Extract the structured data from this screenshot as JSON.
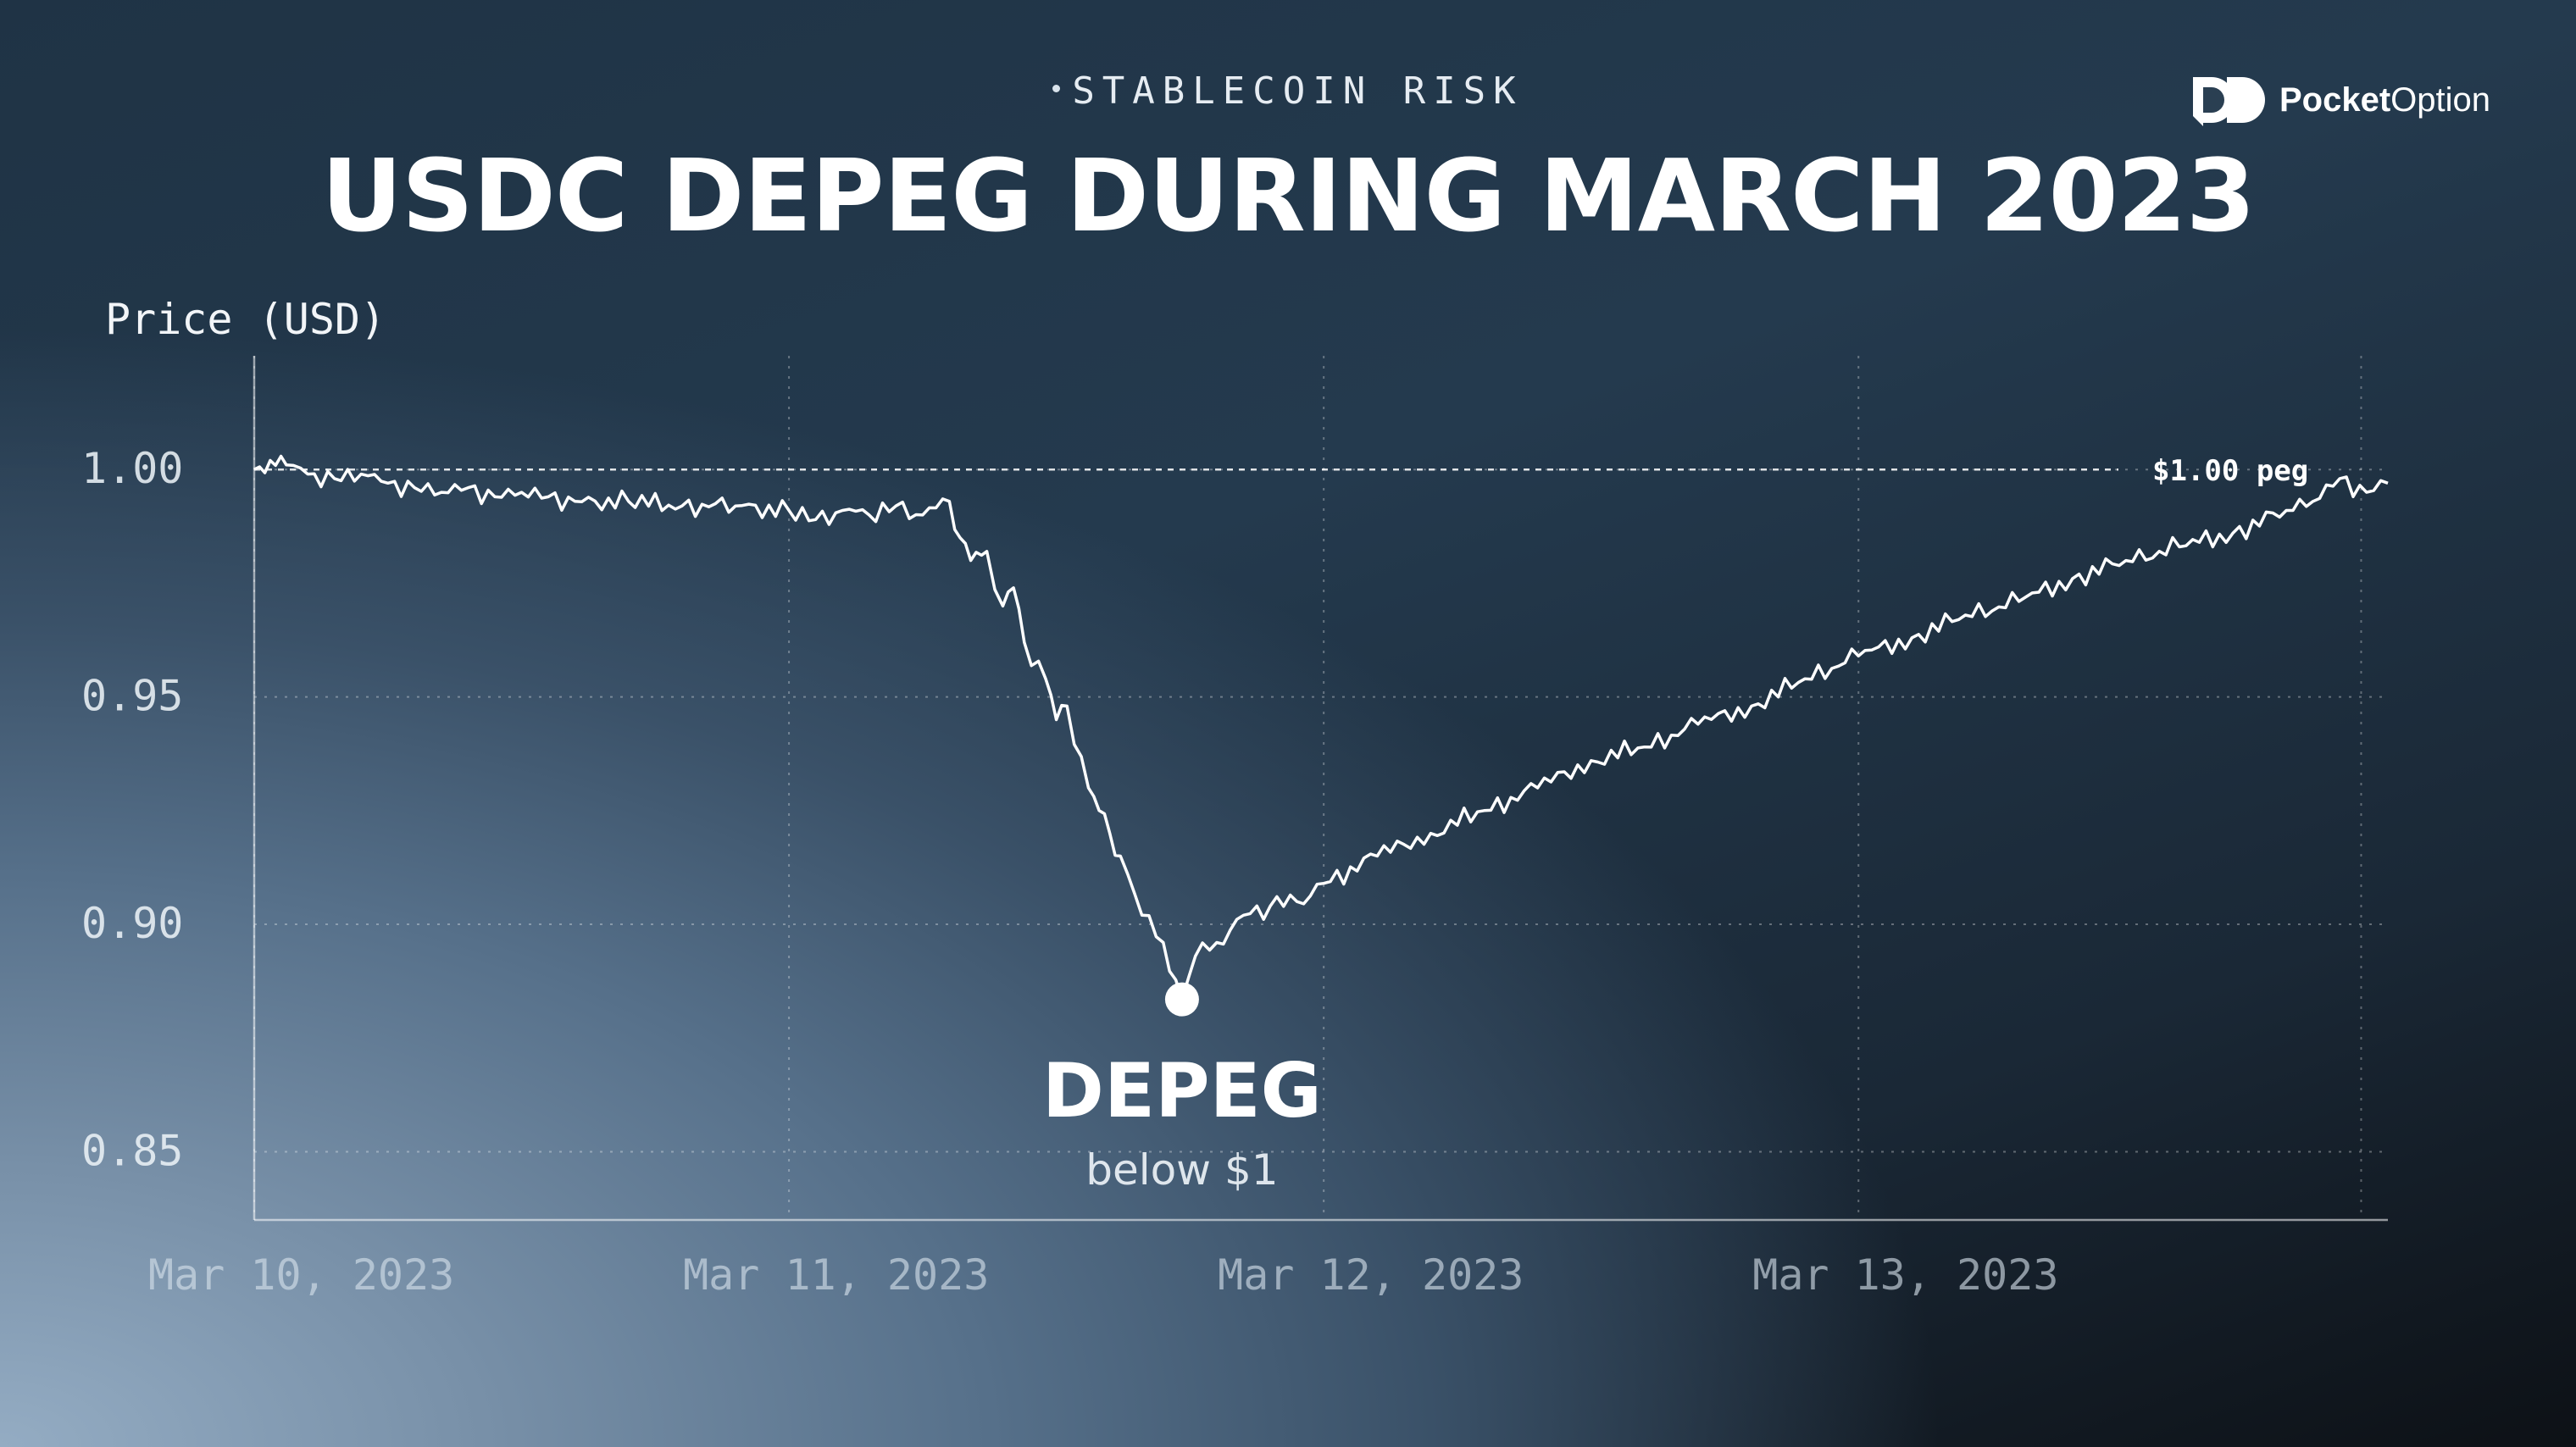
{
  "header": {
    "tag": "STABLECOIN RISK",
    "title": "USDC DEPEG DURING MARCH 2023"
  },
  "logo": {
    "bold": "Pocket",
    "regular": "Option"
  },
  "chart_data": {
    "type": "line",
    "title": "USDC DEPEG DURING MARCH 2023",
    "ylabel": "Price (USD)",
    "xlabel": "",
    "ylim": [
      0.835,
      1.025
    ],
    "xlim": [
      0,
      3.99
    ],
    "y_ticks": [
      1.0,
      0.95,
      0.9,
      0.85
    ],
    "y_tick_labels": [
      "1.00",
      "0.95",
      "0.90",
      "0.85"
    ],
    "x_ticks": [
      0,
      1,
      2,
      3
    ],
    "x_tick_labels": [
      "Mar 10, 2023",
      "Mar 11, 2023",
      "Mar 12, 2023",
      "Mar 13, 2023"
    ],
    "grid": true,
    "peg": {
      "value": 1.0,
      "label": "$1.00 peg"
    },
    "annotation": {
      "x": 1.735,
      "y": 0.8835,
      "label": "DEPEG",
      "sublabel": "below $1"
    },
    "series": [
      {
        "x": [
          0,
          0.03,
          0.06,
          0.1,
          0.15,
          0.2,
          0.25,
          0.3,
          0.35,
          0.4,
          0.45,
          0.5,
          0.55,
          0.6,
          0.7,
          0.8,
          0.9,
          1.0,
          1.05,
          1.1,
          1.15,
          1.2,
          1.25,
          1.3,
          1.32,
          1.34,
          1.37,
          1.4,
          1.42,
          1.44,
          1.48,
          1.5,
          1.52,
          1.56,
          1.58,
          1.6,
          1.62,
          1.66,
          1.7,
          1.735,
          1.76,
          1.8,
          1.85,
          1.9,
          1.95,
          2.0,
          2.1,
          2.2,
          2.3,
          2.4,
          2.5,
          2.6,
          2.7,
          2.8,
          2.9,
          3.0,
          3.1,
          3.2,
          3.3,
          3.4,
          3.5,
          3.6,
          3.7,
          3.8,
          3.85,
          3.9,
          3.95,
          3.99
        ],
        "y": [
          1.0,
          1.002,
          1.001,
          0.999,
          0.998,
          0.999,
          0.997,
          0.996,
          0.995,
          0.996,
          0.994,
          0.995,
          0.994,
          0.993,
          0.993,
          0.992,
          0.992,
          0.991,
          0.989,
          0.991,
          0.99,
          0.992,
          0.99,
          0.993,
          0.985,
          0.98,
          0.982,
          0.97,
          0.974,
          0.962,
          0.954,
          0.945,
          0.948,
          0.93,
          0.925,
          0.92,
          0.915,
          0.902,
          0.896,
          0.8835,
          0.893,
          0.896,
          0.902,
          0.904,
          0.905,
          0.909,
          0.915,
          0.92,
          0.925,
          0.93,
          0.936,
          0.939,
          0.944,
          0.948,
          0.954,
          0.959,
          0.963,
          0.968,
          0.971,
          0.976,
          0.98,
          0.983,
          0.986,
          0.991,
          0.993,
          0.998,
          0.995,
          0.997
        ]
      }
    ]
  }
}
